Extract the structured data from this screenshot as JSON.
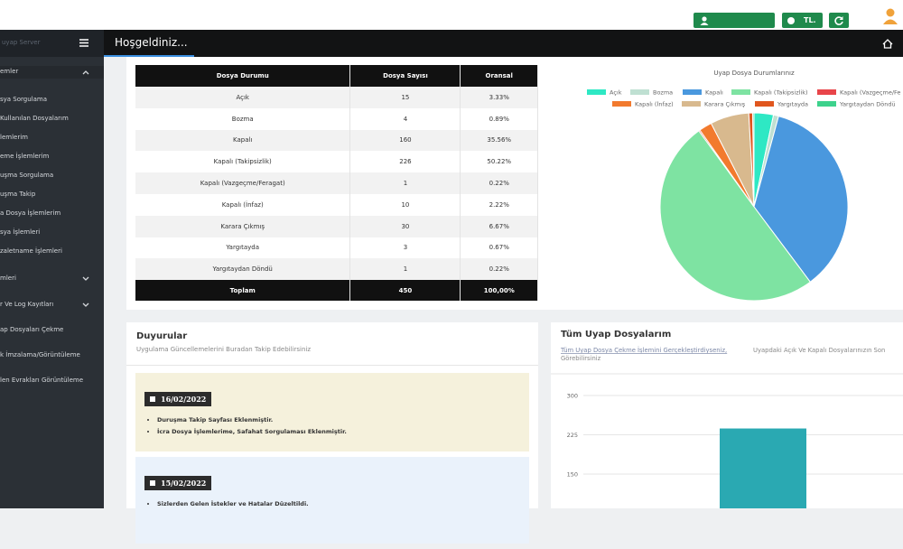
{
  "topbar": {
    "currency": "TL."
  },
  "header": {
    "brand": "uyap Server",
    "title": "Hoşgeldiniz..."
  },
  "sidebar": {
    "items": [
      {
        "label": "emler",
        "chevron": "up",
        "section": true
      },
      {
        "label": "sya Sorgulama"
      },
      {
        "label": "Kullanılan Dosyalarım"
      },
      {
        "label": "lemlerim"
      },
      {
        "label": "eme İşlemlerim"
      },
      {
        "label": "uşma Sorgulama"
      },
      {
        "label": "uşma Takip"
      },
      {
        "label": "a Dosya İşlemlerim"
      },
      {
        "label": "sya İşlemleri"
      },
      {
        "label": "zaletname İşlemleri"
      },
      {
        "label": "mleri",
        "chevron": "down",
        "section": true
      },
      {
        "label": "r Ve Log Kayıtları",
        "chevron": "down",
        "section": true
      },
      {
        "label": "ap Dosyaları Çekme",
        "section": true
      },
      {
        "label": "k İmzalama/Görüntüleme",
        "section": true
      },
      {
        "label": "len Evrakları Görüntüleme",
        "section": true
      }
    ]
  },
  "table": {
    "header": [
      "Dosya Durumu",
      "Dosya Sayısı",
      "Oransal"
    ],
    "rows": [
      [
        "Açık",
        "15",
        "3.33%"
      ],
      [
        "Bozma",
        "4",
        "0.89%"
      ],
      [
        "Kapalı",
        "160",
        "35.56%"
      ],
      [
        "Kapalı (Takipsizlik)",
        "226",
        "50.22%"
      ],
      [
        "Kapalı (Vazgeçme/Feragat)",
        "1",
        "0.22%"
      ],
      [
        "Kapalı (İnfaz)",
        "10",
        "2.22%"
      ],
      [
        "Karara Çıkmış",
        "30",
        "6.67%"
      ],
      [
        "Yargıtayda",
        "3",
        "0.67%"
      ],
      [
        "Yargıtaydan Döndü",
        "1",
        "0.22%"
      ]
    ],
    "total": [
      "Toplam",
      "450",
      "100,00%"
    ]
  },
  "announcements": {
    "title": "Duyurular",
    "subtitle": "Uygulama Güncellemelerini Buradan Takip Edebilirsiniz",
    "items": [
      {
        "date": "16/02/2022",
        "bullets": [
          "Duruşma Takip Sayfası Eklenmiştir.",
          "İcra Dosya İşlemlerime, Safahat Sorgulaması Eklenmiştir."
        ]
      },
      {
        "date": "15/02/2022",
        "bullets": [
          "Sizlerden Gelen İstekler ve Hatalar Düzeltildi."
        ]
      }
    ]
  },
  "chart_data": [
    {
      "type": "pie",
      "title": "Uyap Dosya Durumlarınız",
      "categories": [
        "Açık",
        "Bozma",
        "Kapalı",
        "Kapalı (Takipsizlik)",
        "Kapalı (Vazgeçme/Fe",
        "Kapalı (İnfaz)",
        "Karara Çıkmış",
        "Yargıtayda",
        "Yargıtaydan Döndü"
      ],
      "values": [
        15,
        4,
        160,
        226,
        1,
        10,
        30,
        3,
        1
      ],
      "colors": [
        "#2ee8c4",
        "#bfe0d2",
        "#4a98de",
        "#7ee3a2",
        "#e8454a",
        "#f27a2e",
        "#d8b98e",
        "#e0561e",
        "#3dd28c"
      ]
    },
    {
      "type": "bar",
      "title": "Tüm Uyap Dosyalarım",
      "subtitle_link": "Tüm Uyap Dosya Çekme İşlemini Gerçekleştirdiyseniz,",
      "subtitle": "Uyapdaki Açık Ve Kapalı Dosyalarınızın Son",
      "subtitle_2": "Görebilirsiniz",
      "categories": [
        null
      ],
      "values": [
        237
      ],
      "color": "#2aa9b2",
      "ylim": [
        0,
        300
      ],
      "yticks": [
        150,
        225,
        300
      ],
      "grid": true
    }
  ]
}
